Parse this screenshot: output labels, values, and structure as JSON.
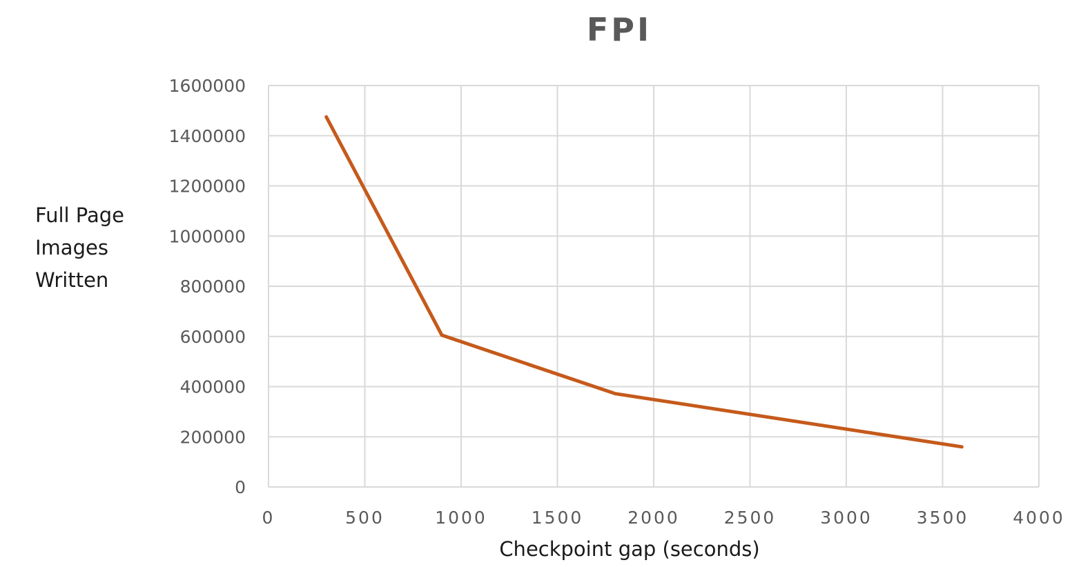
{
  "chart_data": {
    "type": "line",
    "title": "FPI",
    "xlabel": "Checkpoint gap (seconds)",
    "ylabel": [
      "Full Page",
      "Images",
      "Written"
    ],
    "xlim": [
      0,
      4000
    ],
    "ylim": [
      0,
      1600000
    ],
    "x_ticks": [
      "0",
      "500",
      "1000",
      "1500",
      "2000",
      "2500",
      "3000",
      "3500",
      "4000"
    ],
    "y_ticks": [
      "0",
      "200000",
      "400000",
      "600000",
      "800000",
      "1000000",
      "1200000",
      "1400000",
      "1600000"
    ],
    "grid": true,
    "series": [
      {
        "color": "#C55A1B",
        "x": [
          300,
          900,
          1800,
          3600
        ],
        "y": [
          1475000,
          605000,
          372000,
          160000
        ]
      }
    ]
  }
}
